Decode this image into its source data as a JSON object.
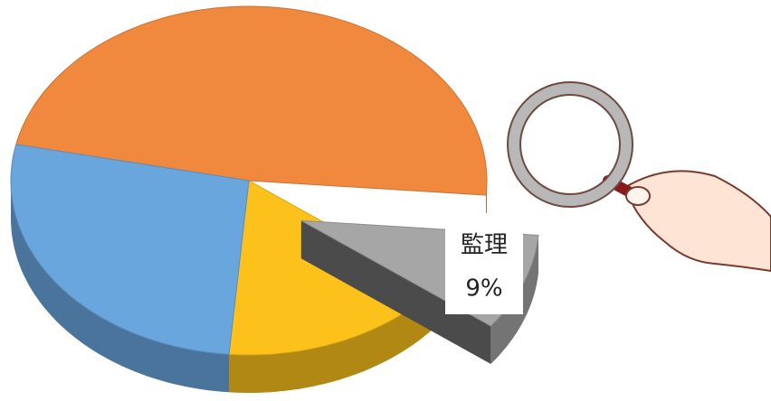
{
  "chart_data": {
    "type": "pie",
    "categories": [
      null,
      "監理",
      null,
      null
    ],
    "values": [
      48,
      9,
      16,
      27
    ],
    "value_labels": [
      null,
      "9%",
      null,
      null
    ],
    "colors": [
      "#f0883e",
      "#a6a6a6",
      "#fcc21b",
      "#6aa6de"
    ]
  }
}
